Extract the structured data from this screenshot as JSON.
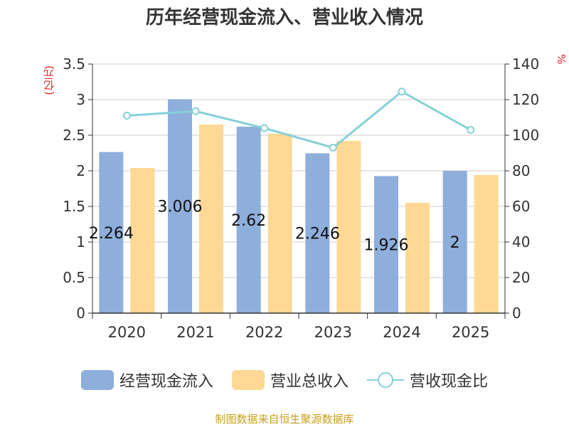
{
  "chart_data": {
    "type": "bar",
    "title": "历年经营现金流入、营业收入情况",
    "categories": [
      "2020",
      "2021",
      "2022",
      "2023",
      "2024",
      "2025"
    ],
    "y_left": {
      "unit": "(亿元)",
      "min": 0,
      "max": 3.5,
      "ticks": [
        "0",
        "0.5",
        "1",
        "1.5",
        "2",
        "2.5",
        "3",
        "3.5"
      ]
    },
    "y_right": {
      "unit": "%",
      "min": 0,
      "max": 140,
      "ticks": [
        "0",
        "20",
        "40",
        "60",
        "80",
        "100",
        "120",
        "140"
      ]
    },
    "grid": true,
    "legend_position": "bottom",
    "series": [
      {
        "name": "经营现金流入",
        "type": "bar",
        "axis": "left",
        "color": "#8eaedb",
        "values": [
          2.264,
          3.006,
          2.62,
          2.246,
          1.926,
          2
        ],
        "labels": [
          "2.264",
          "3.006",
          "2.62",
          "2.246",
          "1.926",
          "2"
        ]
      },
      {
        "name": "营业总收入",
        "type": "bar",
        "axis": "left",
        "color": "#fed894",
        "values": [
          2.04,
          2.65,
          2.52,
          2.42,
          1.55,
          1.94
        ]
      },
      {
        "name": "营收现金比",
        "type": "line",
        "axis": "right",
        "color": "#86d0d8",
        "values": [
          111,
          113.5,
          104,
          93,
          124.5,
          103
        ]
      }
    ]
  },
  "footer": "制图数据来自恒生聚源数据库"
}
